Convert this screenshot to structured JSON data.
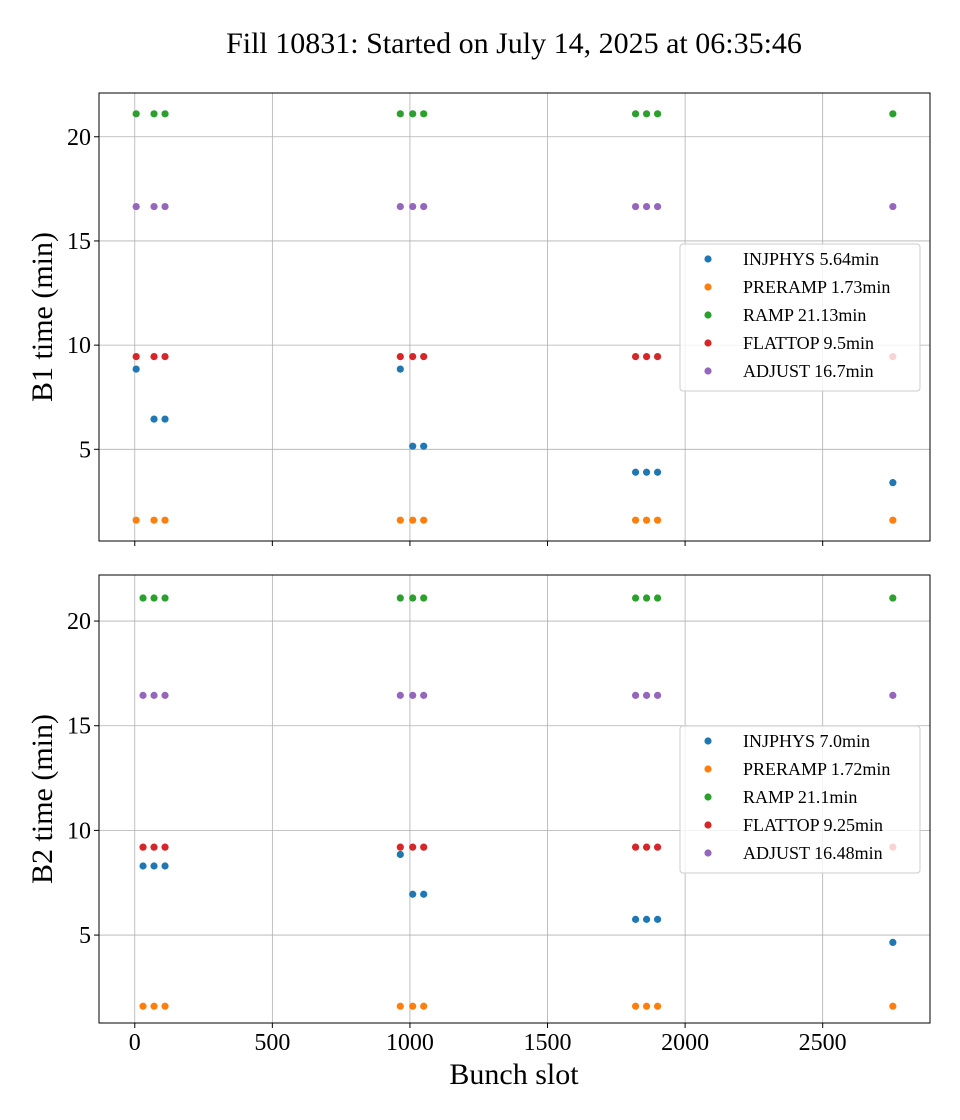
{
  "figure": {
    "title": "Fill 10831: Started on July 14, 2025 at 06:35:46",
    "xlabel": "Bunch slot"
  },
  "colors": {
    "INJPHYS": "#1f77b4",
    "PRERAMP": "#ff7f0e",
    "RAMP": "#2ca02c",
    "FLATTOP": "#d62728",
    "ADJUST": "#9467bd"
  },
  "chart_data": [
    {
      "type": "scatter",
      "title": "",
      "xlabel": "",
      "ylabel": "B1 time (min)",
      "xlim": [
        -130,
        2890
      ],
      "ylim": [
        0.6,
        22.1
      ],
      "x_ticks": [
        0,
        500,
        1000,
        1500,
        2000,
        2500
      ],
      "x_tick_labels": [
        "",
        "",
        "",
        "",
        "",
        ""
      ],
      "y_ticks": [
        5,
        10,
        15,
        20
      ],
      "y_tick_labels": [
        "5",
        "10",
        "15",
        "20"
      ],
      "grid": true,
      "legend_position": "center-right",
      "series": [
        {
          "key": "INJPHYS",
          "name": "INJPHYS 5.64min",
          "color": "#1f77b4",
          "x": [
            5,
            70,
            110,
            965,
            1010,
            1050,
            1820,
            1860,
            1900,
            2755
          ],
          "y": [
            8.85,
            6.45,
            6.45,
            8.85,
            5.15,
            5.15,
            3.9,
            3.9,
            3.9,
            3.4
          ]
        },
        {
          "key": "PRERAMP",
          "name": "PRERAMP 1.73min",
          "color": "#ff7f0e",
          "x": [
            5,
            70,
            110,
            965,
            1010,
            1050,
            1820,
            1860,
            1900,
            2755
          ],
          "y": [
            1.6,
            1.6,
            1.6,
            1.6,
            1.6,
            1.6,
            1.6,
            1.6,
            1.6,
            1.6
          ]
        },
        {
          "key": "RAMP",
          "name": "RAMP 21.13min",
          "color": "#2ca02c",
          "x": [
            5,
            70,
            110,
            965,
            1010,
            1050,
            1820,
            1860,
            1900,
            2755
          ],
          "y": [
            21.1,
            21.1,
            21.1,
            21.1,
            21.1,
            21.1,
            21.1,
            21.1,
            21.1,
            21.1
          ]
        },
        {
          "key": "FLATTOP",
          "name": "FLATTOP 9.5min",
          "color": "#d62728",
          "x": [
            5,
            70,
            110,
            965,
            1010,
            1050,
            1820,
            1860,
            1900,
            2755
          ],
          "y": [
            9.45,
            9.45,
            9.45,
            9.45,
            9.45,
            9.45,
            9.45,
            9.45,
            9.45,
            9.45
          ]
        },
        {
          "key": "ADJUST",
          "name": "ADJUST 16.7min",
          "color": "#9467bd",
          "x": [
            5,
            70,
            110,
            965,
            1010,
            1050,
            1820,
            1860,
            1900,
            2755
          ],
          "y": [
            16.65,
            16.65,
            16.65,
            16.65,
            16.65,
            16.65,
            16.65,
            16.65,
            16.65,
            16.65
          ]
        }
      ]
    },
    {
      "type": "scatter",
      "title": "",
      "xlabel": "Bunch slot",
      "ylabel": "B2 time (min)",
      "xlim": [
        -130,
        2890
      ],
      "ylim": [
        0.8,
        22.2
      ],
      "x_ticks": [
        0,
        500,
        1000,
        1500,
        2000,
        2500
      ],
      "x_tick_labels": [
        "0",
        "500",
        "1000",
        "1500",
        "2000",
        "2500"
      ],
      "y_ticks": [
        5,
        10,
        15,
        20
      ],
      "y_tick_labels": [
        "5",
        "10",
        "15",
        "20"
      ],
      "grid": true,
      "legend_position": "center-right",
      "series": [
        {
          "key": "INJPHYS",
          "name": "INJPHYS 7.0min",
          "color": "#1f77b4",
          "x": [
            30,
            70,
            110,
            965,
            1010,
            1050,
            1820,
            1860,
            1900,
            2755
          ],
          "y": [
            8.3,
            8.3,
            8.3,
            8.85,
            6.95,
            6.95,
            5.75,
            5.75,
            5.75,
            4.65
          ]
        },
        {
          "key": "PRERAMP",
          "name": "PRERAMP 1.72min",
          "color": "#ff7f0e",
          "x": [
            30,
            70,
            110,
            965,
            1010,
            1050,
            1820,
            1860,
            1900,
            2755
          ],
          "y": [
            1.6,
            1.6,
            1.6,
            1.6,
            1.6,
            1.6,
            1.6,
            1.6,
            1.6,
            1.6
          ]
        },
        {
          "key": "RAMP",
          "name": "RAMP 21.1min",
          "color": "#2ca02c",
          "x": [
            30,
            70,
            110,
            965,
            1010,
            1050,
            1820,
            1860,
            1900,
            2755
          ],
          "y": [
            21.1,
            21.1,
            21.1,
            21.1,
            21.1,
            21.1,
            21.1,
            21.1,
            21.1,
            21.1
          ]
        },
        {
          "key": "FLATTOP",
          "name": "FLATTOP 9.25min",
          "color": "#d62728",
          "x": [
            30,
            70,
            110,
            965,
            1010,
            1050,
            1820,
            1860,
            1900,
            2755
          ],
          "y": [
            9.2,
            9.2,
            9.2,
            9.2,
            9.2,
            9.2,
            9.2,
            9.2,
            9.2,
            9.2
          ]
        },
        {
          "key": "ADJUST",
          "name": "ADJUST 16.48min",
          "color": "#9467bd",
          "x": [
            30,
            70,
            110,
            965,
            1010,
            1050,
            1820,
            1860,
            1900,
            2755
          ],
          "y": [
            16.45,
            16.45,
            16.45,
            16.45,
            16.45,
            16.45,
            16.45,
            16.45,
            16.45,
            16.45
          ]
        }
      ]
    }
  ]
}
